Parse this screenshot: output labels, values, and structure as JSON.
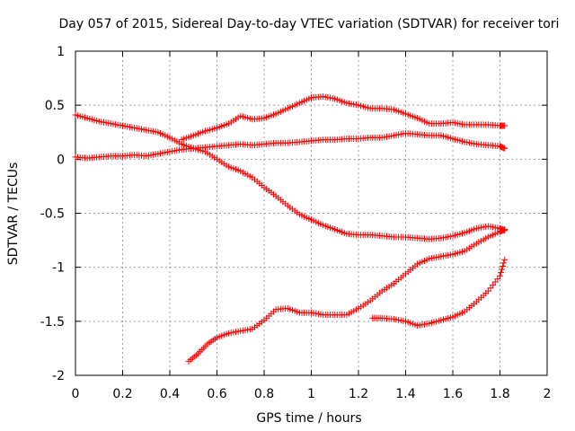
{
  "chart_data": {
    "type": "scatter",
    "title": "Day 057 of 2015, Sidereal Day-to-day VTEC variation (SDTVAR) for receiver tori",
    "xlabel": "GPS time / hours",
    "ylabel": "SDTVAR / TECUs",
    "xlim": [
      0,
      2
    ],
    "ylim": [
      -2,
      1
    ],
    "x_ticks": [
      0,
      0.2,
      0.4,
      0.6,
      0.8,
      1,
      1.2,
      1.4,
      1.6,
      1.8,
      2
    ],
    "x_tick_labels": [
      "0",
      "0.2",
      "0.4",
      "0.6",
      "0.8",
      "1",
      "1.2",
      "1.4",
      "1.6",
      "1.8",
      "2"
    ],
    "y_ticks": [
      -2,
      -1.5,
      -1,
      -0.5,
      0,
      0.5,
      1
    ],
    "y_tick_labels": [
      "-2",
      "-1.5",
      "-1",
      "-0.5",
      "0",
      "0.5",
      "1"
    ],
    "grid": true,
    "marker": "+",
    "marker_color": "#ff0000",
    "series": [
      {
        "x": [
          0.0,
          0.05,
          0.1,
          0.15,
          0.2,
          0.25,
          0.3,
          0.35,
          0.4,
          0.45,
          0.5,
          0.55,
          0.6,
          0.65,
          0.7,
          0.75,
          0.8,
          0.85,
          0.9,
          0.95,
          1.0,
          1.05,
          1.1,
          1.15,
          1.2,
          1.25,
          1.3,
          1.35,
          1.4,
          1.45,
          1.5,
          1.55,
          1.6,
          1.65,
          1.7,
          1.75,
          1.8,
          1.82
        ],
        "y": [
          0.41,
          0.38,
          0.35,
          0.33,
          0.31,
          0.29,
          0.27,
          0.25,
          0.2,
          0.14,
          0.1,
          0.07,
          0.0,
          -0.07,
          -0.11,
          -0.17,
          -0.26,
          -0.34,
          -0.43,
          -0.51,
          -0.56,
          -0.61,
          -0.65,
          -0.69,
          -0.7,
          -0.7,
          -0.71,
          -0.72,
          -0.72,
          -0.73,
          -0.74,
          -0.73,
          -0.71,
          -0.68,
          -0.64,
          -0.62,
          -0.64,
          -0.66
        ]
      },
      {
        "x": [
          0.0,
          0.05,
          0.1,
          0.15,
          0.2,
          0.25,
          0.3,
          0.35,
          0.4,
          0.45,
          0.5,
          0.55,
          0.6,
          0.65,
          0.7,
          0.75,
          0.8,
          0.85,
          0.9,
          0.95,
          1.0,
          1.05,
          1.1,
          1.15,
          1.2,
          1.25,
          1.3,
          1.35,
          1.4,
          1.45,
          1.5,
          1.55,
          1.6,
          1.65,
          1.7,
          1.75,
          1.8,
          1.82
        ],
        "y": [
          0.02,
          0.01,
          0.02,
          0.03,
          0.03,
          0.04,
          0.03,
          0.05,
          0.07,
          0.09,
          0.1,
          0.11,
          0.12,
          0.13,
          0.14,
          0.13,
          0.14,
          0.15,
          0.15,
          0.16,
          0.17,
          0.18,
          0.18,
          0.19,
          0.19,
          0.2,
          0.2,
          0.22,
          0.24,
          0.23,
          0.22,
          0.22,
          0.19,
          0.16,
          0.14,
          0.13,
          0.12,
          0.1
        ]
      },
      {
        "x": [
          0.45,
          0.5,
          0.55,
          0.6,
          0.65,
          0.7,
          0.75,
          0.8,
          0.85,
          0.9,
          0.95,
          1.0,
          1.05,
          1.1,
          1.15,
          1.2,
          1.25,
          1.3,
          1.35,
          1.4,
          1.45,
          1.5,
          1.55,
          1.6,
          1.65,
          1.7,
          1.75,
          1.8,
          1.82
        ],
        "y": [
          0.18,
          0.22,
          0.26,
          0.29,
          0.33,
          0.4,
          0.37,
          0.38,
          0.42,
          0.47,
          0.52,
          0.57,
          0.58,
          0.56,
          0.52,
          0.5,
          0.47,
          0.47,
          0.46,
          0.42,
          0.38,
          0.33,
          0.33,
          0.34,
          0.32,
          0.32,
          0.32,
          0.31,
          0.31
        ]
      },
      {
        "x": [
          0.48,
          0.52,
          0.56,
          0.6,
          0.65,
          0.7,
          0.75,
          0.8,
          0.85,
          0.9,
          0.95,
          1.0,
          1.05,
          1.1,
          1.15,
          1.2,
          1.25,
          1.3,
          1.35,
          1.4,
          1.45,
          1.5,
          1.55,
          1.6,
          1.65,
          1.7,
          1.75,
          1.8,
          1.82
        ],
        "y": [
          -1.87,
          -1.8,
          -1.71,
          -1.65,
          -1.61,
          -1.59,
          -1.57,
          -1.49,
          -1.39,
          -1.38,
          -1.42,
          -1.42,
          -1.44,
          -1.44,
          -1.44,
          -1.38,
          -1.31,
          -1.22,
          -1.15,
          -1.06,
          -0.97,
          -0.92,
          -0.9,
          -0.88,
          -0.85,
          -0.78,
          -0.72,
          -0.67,
          -0.65
        ]
      },
      {
        "x": [
          1.26,
          1.3,
          1.35,
          1.4,
          1.45,
          1.5,
          1.55,
          1.6,
          1.65,
          1.7,
          1.75,
          1.8,
          1.82
        ],
        "y": [
          -1.47,
          -1.47,
          -1.48,
          -1.5,
          -1.54,
          -1.52,
          -1.49,
          -1.46,
          -1.41,
          -1.32,
          -1.22,
          -1.08,
          -0.93
        ]
      }
    ]
  }
}
